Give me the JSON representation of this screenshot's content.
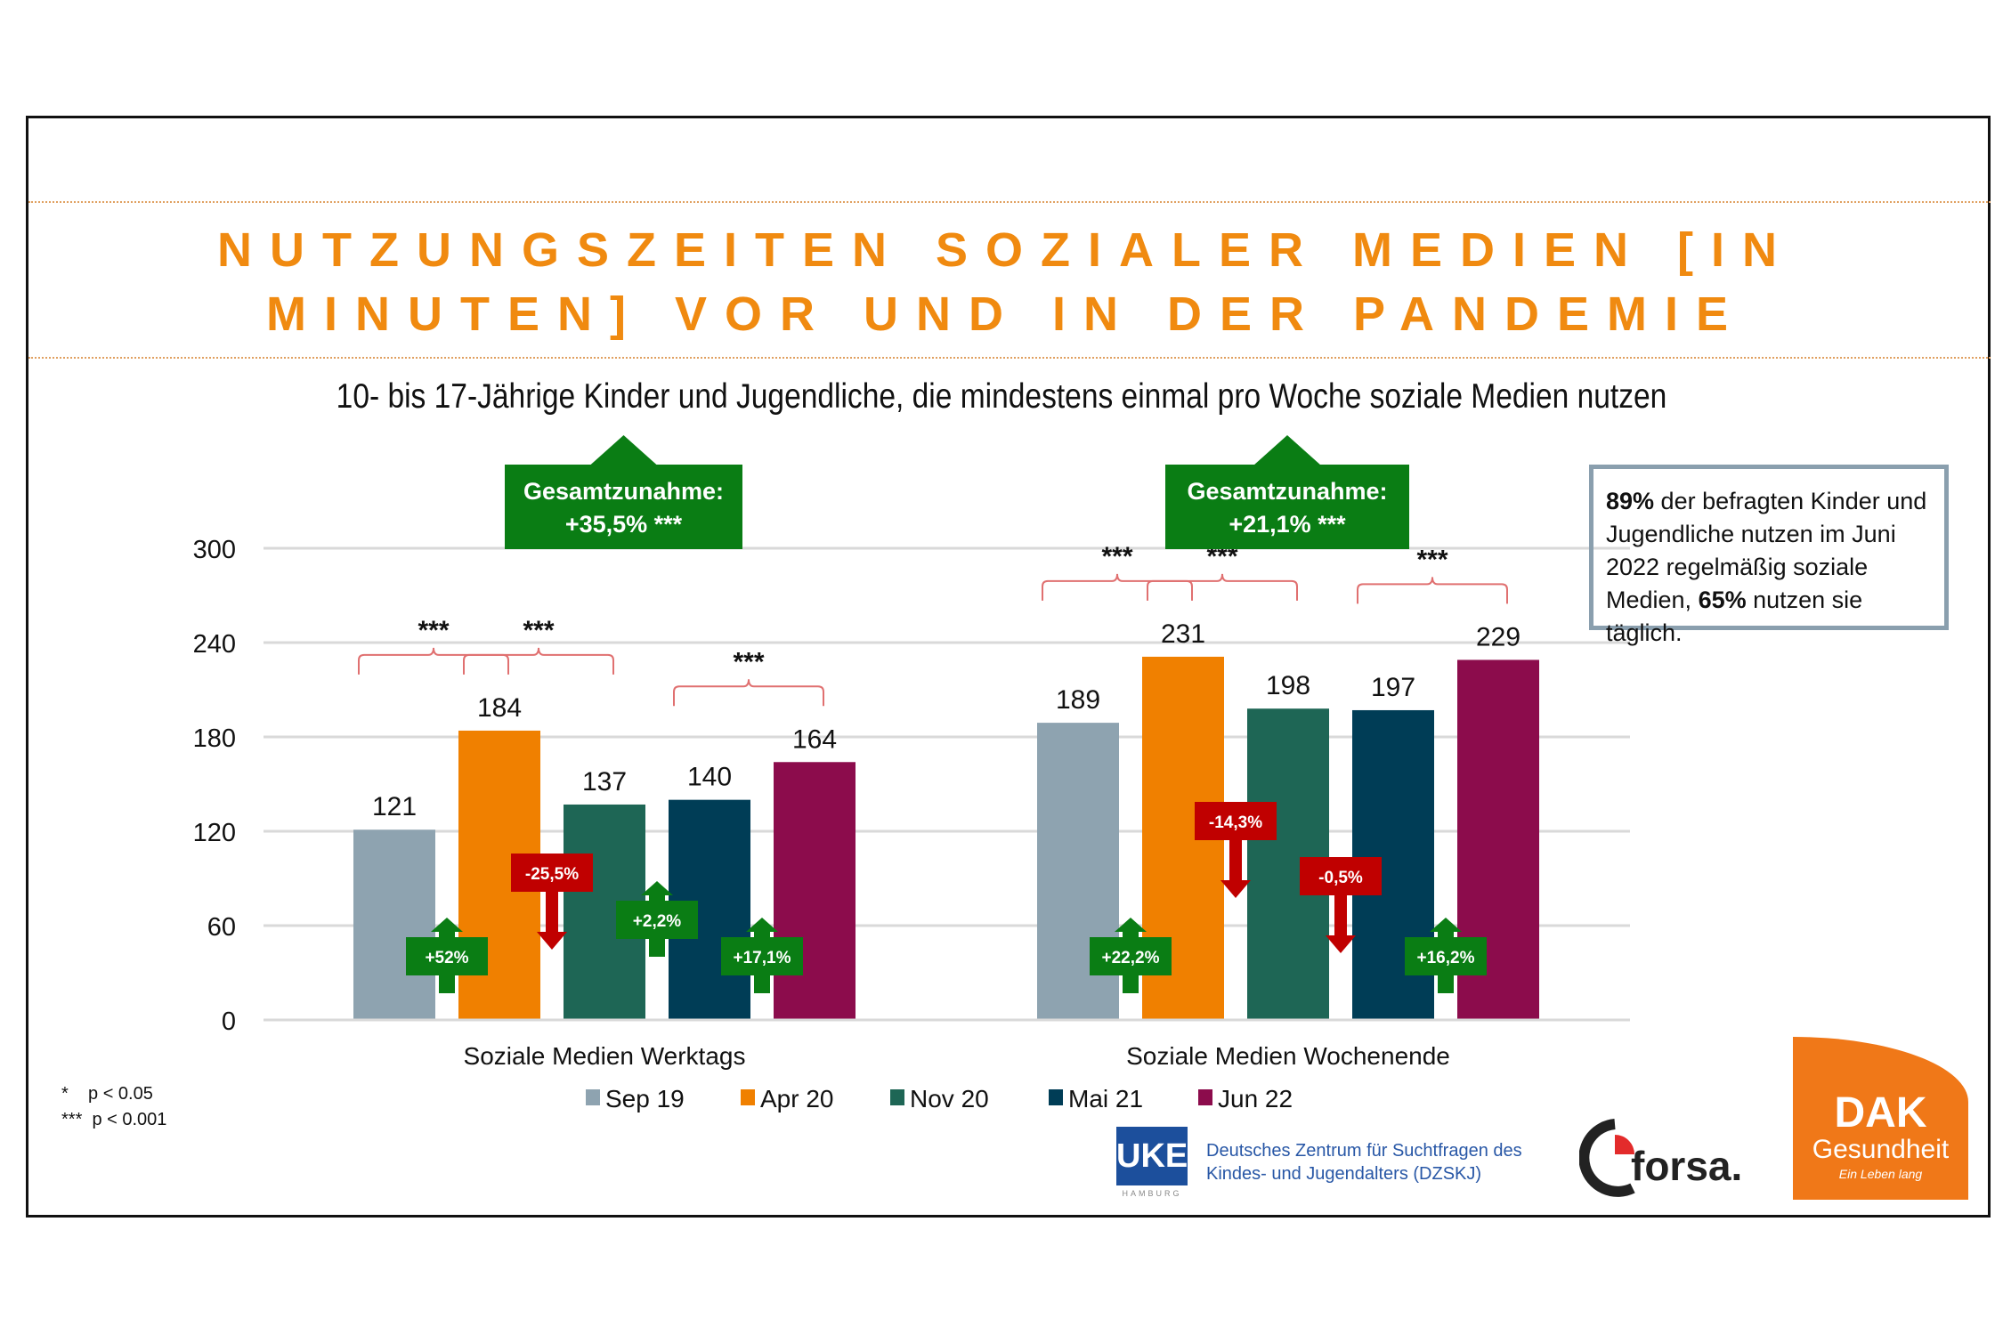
{
  "title_line1": "NUTZUNGSZEITEN SOZIALER MEDIEN [IN",
  "title_line2": "MINUTEN] VOR UND IN DER PANDEMIE",
  "subtitle": "10- bis 17-Jährige Kinder und Jugendliche, die mindestens einmal pro Woche soziale Medien nutzen",
  "info_box": {
    "bold1": "89%",
    "text1": " der befragten Kinder und Jugendliche nutzen im Juni 2022 regelmäßig soziale Medien, ",
    "bold2": "65%",
    "text2": " nutzen sie täglich."
  },
  "footnotes": [
    "*    p < 0.05",
    "***  p < 0.001"
  ],
  "logos": {
    "uke": "UKE",
    "uke_sub": "HAMBURG",
    "dzskj_line1": "Deutsches Zentrum für Suchtfragen des",
    "dzskj_line2": "Kindes- und Jugendalters (DZSKJ)",
    "forsa": "forsa.",
    "dak": "DAK",
    "dak_sub": "Gesundheit",
    "dak_tag": "Ein Leben lang"
  },
  "chart_data": {
    "type": "bar",
    "categories": [
      "Soziale Medien Werktags",
      "Soziale Medien Wochenende"
    ],
    "series": [
      {
        "name": "Sep 19",
        "color": "#8ea3b0",
        "values": [
          121,
          189
        ]
      },
      {
        "name": "Apr 20",
        "color": "#f08000",
        "values": [
          184,
          231
        ]
      },
      {
        "name": "Nov 20",
        "color": "#1e6655",
        "values": [
          137,
          198
        ]
      },
      {
        "name": "Mai 21",
        "color": "#003d56",
        "values": [
          140,
          197
        ]
      },
      {
        "name": "Jun 22",
        "color": "#8c0c4c",
        "values": [
          164,
          229
        ]
      }
    ],
    "ylim": [
      0,
      300
    ],
    "yticks": [
      0,
      60,
      120,
      180,
      240,
      300
    ],
    "grid": true,
    "legend": "bottom",
    "changes": [
      [
        "+52%",
        "-25,5%",
        "+2,2%",
        "+17,1%"
      ],
      [
        "+22,2%",
        "-14,3%",
        "-0,5%",
        "+16,2%"
      ]
    ],
    "significance": [
      [
        {
          "from": 0,
          "to": 1,
          "label": "***"
        },
        {
          "from": 1,
          "to": 2,
          "label": "***"
        },
        {
          "from": 3,
          "to": 4,
          "label": "***"
        }
      ],
      [
        {
          "from": 0,
          "to": 1,
          "label": "***"
        },
        {
          "from": 1,
          "to": 2,
          "label": "***"
        },
        {
          "from": 3,
          "to": 4,
          "label": "***"
        }
      ]
    ],
    "totals": [
      {
        "label": "Gesamtzunahme:",
        "value": "+35,5% ***"
      },
      {
        "label": "Gesamtzunahme:",
        "value": "+21,1% ***"
      }
    ],
    "colors": {
      "increase": "#0a7d14",
      "decrease": "#c00000",
      "bracket": "#e07070"
    }
  }
}
